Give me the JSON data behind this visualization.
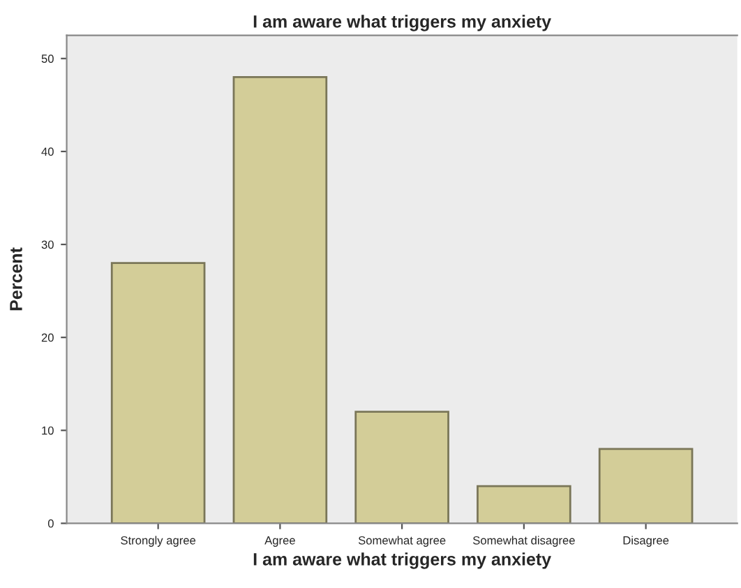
{
  "chart_data": {
    "type": "bar",
    "title": "I am aware what triggers my anxiety",
    "xlabel": "I am aware what triggers my anxiety",
    "ylabel": "Percent",
    "categories": [
      "Strongly agree",
      "Agree",
      "Somewhat agree",
      "Somewhat disagree",
      "Disagree"
    ],
    "values": [
      28,
      48,
      12,
      4,
      8
    ],
    "color": "#d3cd98",
    "ylim": [
      0,
      52.5
    ],
    "yticks": [
      0,
      10,
      20,
      30,
      40,
      50
    ],
    "grid": false,
    "legend": false
  }
}
